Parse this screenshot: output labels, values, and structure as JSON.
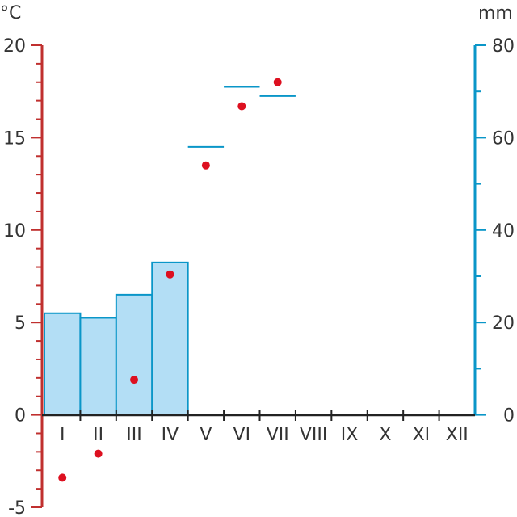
{
  "chart_data": {
    "type": "bar",
    "left_unit": "°C",
    "right_unit": "mm",
    "categories": [
      "I",
      "II",
      "III",
      "IV",
      "V",
      "VI",
      "VII",
      "VIII",
      "IX",
      "X",
      "XI",
      "XII"
    ],
    "temperature": {
      "axis": "left",
      "ylim": [
        -5,
        20
      ],
      "ticks": [
        -5,
        0,
        5,
        10,
        15,
        20
      ],
      "values": [
        -3.4,
        -2.1,
        1.9,
        7.6,
        13.5,
        16.7,
        18.0,
        null,
        null,
        null,
        null,
        null
      ]
    },
    "precipitation": {
      "axis": "right",
      "ylim": [
        -20,
        80
      ],
      "ticks": [
        0,
        20,
        40,
        60,
        80
      ],
      "values": [
        22,
        21,
        26,
        33,
        58,
        71,
        69,
        null,
        null,
        null,
        null,
        null
      ]
    },
    "colors": {
      "temperature_axis": "#c0302f",
      "precip_axis": "#0a96c8",
      "bar_fill": "#b3def5",
      "bar_stroke": "#0a96c8",
      "dot": "#dd1020",
      "xaxis": "#222222"
    }
  }
}
